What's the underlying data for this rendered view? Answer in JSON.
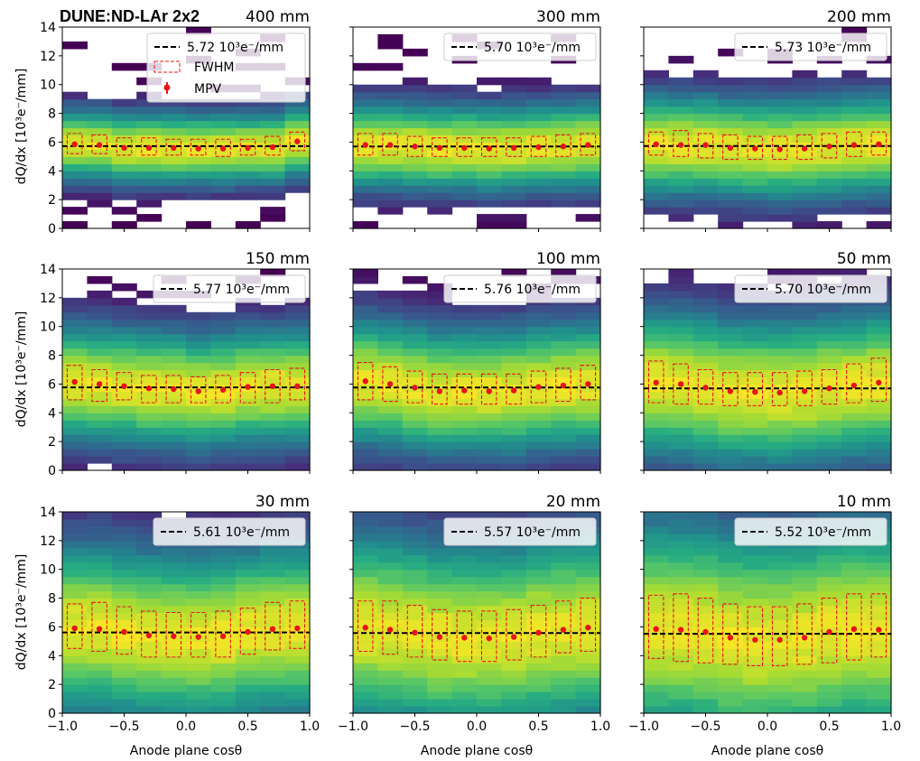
{
  "figure": {
    "suptitle": "DUNE:ND-LAr 2x2",
    "xlabel": "Anode plane cosθ",
    "ylabel": "dQ/dx [10³e⁻/mm]",
    "legend_line_template": "{v} 10³e⁻/mm",
    "legend_fwhm": "FWHM",
    "legend_mpv": "MPV",
    "colors": {
      "fit_line": "#000000",
      "fwhm_box": "#e8141a",
      "mpv_marker": "#e8141a",
      "colormap": "viridis"
    }
  },
  "chart_data": [
    {
      "type": "heatmap",
      "title": "400 mm",
      "fit_value": "5.72",
      "xlim": [
        -1.0,
        1.0
      ],
      "ylim": [
        0,
        14
      ],
      "xticks": [
        "−1.0",
        "−0.5",
        "0.0",
        "0.5",
        "1.0"
      ],
      "yticks": [
        "0",
        "2",
        "4",
        "6",
        "8",
        "10",
        "12",
        "14"
      ],
      "bins_x": [
        -0.9,
        -0.7,
        -0.5,
        -0.3,
        -0.1,
        0.1,
        0.3,
        0.5,
        0.7,
        0.9
      ],
      "mpv": [
        5.85,
        5.8,
        5.6,
        5.6,
        5.6,
        5.55,
        5.55,
        5.6,
        5.65,
        6.05
      ],
      "fwhm_low": [
        5.2,
        5.2,
        5.1,
        5.1,
        5.1,
        5.1,
        5.0,
        5.1,
        5.1,
        5.4
      ],
      "fwhm_high": [
        6.6,
        6.5,
        6.3,
        6.3,
        6.2,
        6.2,
        6.2,
        6.2,
        6.4,
        6.7
      ],
      "spread": 1.4,
      "occupancy": "sparse"
    },
    {
      "type": "heatmap",
      "title": "300 mm",
      "fit_value": "5.70",
      "xlim": [
        -1.0,
        1.0
      ],
      "ylim": [
        0,
        14
      ],
      "xticks": [
        "−1.0",
        "−0.5",
        "0.0",
        "0.5",
        "1.0"
      ],
      "yticks": [
        "0",
        "2",
        "4",
        "6",
        "8",
        "10",
        "12",
        "14"
      ],
      "bins_x": [
        -0.9,
        -0.7,
        -0.5,
        -0.3,
        -0.1,
        0.1,
        0.3,
        0.5,
        0.7,
        0.9
      ],
      "mpv": [
        5.8,
        5.8,
        5.7,
        5.6,
        5.6,
        5.55,
        5.6,
        5.65,
        5.7,
        5.8
      ],
      "fwhm_low": [
        5.1,
        5.1,
        5.0,
        5.0,
        5.0,
        5.0,
        5.0,
        5.0,
        5.0,
        5.1
      ],
      "fwhm_high": [
        6.6,
        6.6,
        6.4,
        6.3,
        6.3,
        6.3,
        6.3,
        6.4,
        6.5,
        6.6
      ],
      "spread": 1.7,
      "occupancy": "sparse"
    },
    {
      "type": "heatmap",
      "title": "200 mm",
      "fit_value": "5.73",
      "xlim": [
        -1.0,
        1.0
      ],
      "ylim": [
        0,
        14
      ],
      "xticks": [
        "−1.0",
        "−0.5",
        "0.0",
        "0.5",
        "1.0"
      ],
      "yticks": [
        "0",
        "2",
        "4",
        "6",
        "8",
        "10",
        "12",
        "14"
      ],
      "bins_x": [
        -0.9,
        -0.7,
        -0.5,
        -0.3,
        -0.1,
        0.1,
        0.3,
        0.5,
        0.7,
        0.9
      ],
      "mpv": [
        5.85,
        5.8,
        5.8,
        5.6,
        5.55,
        5.5,
        5.55,
        5.7,
        5.8,
        5.85
      ],
      "fwhm_low": [
        5.1,
        5.0,
        4.9,
        4.8,
        4.8,
        4.8,
        4.8,
        4.9,
        5.0,
        5.1
      ],
      "fwhm_high": [
        6.7,
        6.8,
        6.6,
        6.5,
        6.4,
        6.4,
        6.5,
        6.6,
        6.7,
        6.7
      ],
      "spread": 2.0,
      "occupancy": "sparse"
    },
    {
      "type": "heatmap",
      "title": "150 mm",
      "fit_value": "5.77",
      "xlim": [
        -1.0,
        1.0
      ],
      "ylim": [
        0,
        14
      ],
      "xticks": [
        "−1.0",
        "−0.5",
        "0.0",
        "0.5",
        "1.0"
      ],
      "yticks": [
        "0",
        "2",
        "4",
        "6",
        "8",
        "10",
        "12",
        "14"
      ],
      "bins_x": [
        -0.9,
        -0.7,
        -0.5,
        -0.3,
        -0.1,
        0.1,
        0.3,
        0.5,
        0.7,
        0.9
      ],
      "mpv": [
        6.15,
        6.0,
        5.85,
        5.7,
        5.65,
        5.5,
        5.6,
        5.8,
        5.85,
        5.85
      ],
      "fwhm_low": [
        4.9,
        4.8,
        4.9,
        4.7,
        4.7,
        4.7,
        4.7,
        4.7,
        4.7,
        4.9
      ],
      "fwhm_high": [
        7.3,
        7.0,
        6.8,
        6.6,
        6.6,
        6.5,
        6.6,
        6.8,
        7.0,
        7.1
      ],
      "spread": 2.3,
      "occupancy": "medium"
    },
    {
      "type": "heatmap",
      "title": "100 mm",
      "fit_value": "5.76",
      "xlim": [
        -1.0,
        1.0
      ],
      "ylim": [
        0,
        14
      ],
      "xticks": [
        "−1.0",
        "−0.5",
        "0.0",
        "0.5",
        "1.0"
      ],
      "yticks": [
        "0",
        "2",
        "4",
        "6",
        "8",
        "10",
        "12",
        "14"
      ],
      "bins_x": [
        -0.9,
        -0.7,
        -0.5,
        -0.3,
        -0.1,
        0.1,
        0.3,
        0.5,
        0.7,
        0.9
      ],
      "mpv": [
        6.2,
        6.0,
        5.75,
        5.5,
        5.55,
        5.5,
        5.55,
        5.8,
        5.9,
        6.0
      ],
      "fwhm_low": [
        4.9,
        4.8,
        4.7,
        4.6,
        4.6,
        4.6,
        4.6,
        4.7,
        4.8,
        4.9
      ],
      "fwhm_high": [
        7.5,
        7.2,
        6.9,
        6.7,
        6.7,
        6.7,
        6.7,
        6.9,
        7.1,
        7.3
      ],
      "spread": 2.5,
      "occupancy": "medium"
    },
    {
      "type": "heatmap",
      "title": "50 mm",
      "fit_value": "5.70",
      "xlim": [
        -1.0,
        1.0
      ],
      "ylim": [
        0,
        14
      ],
      "xticks": [
        "−1.0",
        "−0.5",
        "0.0",
        "0.5",
        "1.0"
      ],
      "yticks": [
        "0",
        "2",
        "4",
        "6",
        "8",
        "10",
        "12",
        "14"
      ],
      "bins_x": [
        -0.9,
        -0.7,
        -0.5,
        -0.3,
        -0.1,
        0.1,
        0.3,
        0.5,
        0.7,
        0.9
      ],
      "mpv": [
        6.1,
        6.0,
        5.75,
        5.5,
        5.45,
        5.4,
        5.5,
        5.7,
        5.9,
        6.1
      ],
      "fwhm_low": [
        4.7,
        4.6,
        4.6,
        4.5,
        4.5,
        4.5,
        4.5,
        4.6,
        4.7,
        4.8
      ],
      "fwhm_high": [
        7.6,
        7.4,
        7.0,
        6.8,
        6.8,
        6.8,
        6.9,
        7.0,
        7.4,
        7.8
      ],
      "spread": 2.9,
      "occupancy": "dense"
    },
    {
      "type": "heatmap",
      "title": "30 mm",
      "fit_value": "5.61",
      "xlim": [
        -1.0,
        1.0
      ],
      "ylim": [
        0,
        14
      ],
      "xticks": [
        "−1.0",
        "−0.5",
        "0.0",
        "0.5",
        "1.0"
      ],
      "yticks": [
        "0",
        "2",
        "4",
        "6",
        "8",
        "10",
        "12",
        "14"
      ],
      "bins_x": [
        -0.9,
        -0.7,
        -0.5,
        -0.3,
        -0.1,
        0.1,
        0.3,
        0.5,
        0.7,
        0.9
      ],
      "mpv": [
        5.9,
        5.85,
        5.65,
        5.4,
        5.35,
        5.3,
        5.35,
        5.65,
        5.85,
        5.9
      ],
      "fwhm_low": [
        4.5,
        4.3,
        4.1,
        3.9,
        3.9,
        3.9,
        3.9,
        4.1,
        4.4,
        4.5
      ],
      "fwhm_high": [
        7.6,
        7.7,
        7.4,
        7.1,
        7.0,
        7.0,
        7.1,
        7.3,
        7.7,
        7.8
      ],
      "spread": 3.4,
      "occupancy": "dense"
    },
    {
      "type": "heatmap",
      "title": "20 mm",
      "fit_value": "5.57",
      "xlim": [
        -1.0,
        1.0
      ],
      "ylim": [
        0,
        14
      ],
      "xticks": [
        "−1.0",
        "−0.5",
        "0.0",
        "0.5",
        "1.0"
      ],
      "yticks": [
        "0",
        "2",
        "4",
        "6",
        "8",
        "10",
        "12",
        "14"
      ],
      "bins_x": [
        -0.9,
        -0.7,
        -0.5,
        -0.3,
        -0.1,
        0.1,
        0.3,
        0.5,
        0.7,
        0.9
      ],
      "mpv": [
        5.95,
        5.8,
        5.6,
        5.3,
        5.25,
        5.2,
        5.3,
        5.6,
        5.8,
        5.95
      ],
      "fwhm_low": [
        4.3,
        4.1,
        3.9,
        3.7,
        3.6,
        3.6,
        3.7,
        3.9,
        4.2,
        4.3
      ],
      "fwhm_high": [
        7.8,
        7.8,
        7.5,
        7.2,
        7.1,
        7.1,
        7.2,
        7.5,
        7.8,
        8.0
      ],
      "spread": 3.8,
      "occupancy": "dense"
    },
    {
      "type": "heatmap",
      "title": "10 mm",
      "fit_value": "5.52",
      "xlim": [
        -1.0,
        1.0
      ],
      "ylim": [
        0,
        14
      ],
      "xticks": [
        "−1.0",
        "−0.5",
        "0.0",
        "0.5",
        "1.0"
      ],
      "yticks": [
        "0",
        "2",
        "4",
        "6",
        "8",
        "10",
        "12",
        "14"
      ],
      "bins_x": [
        -0.9,
        -0.7,
        -0.5,
        -0.3,
        -0.1,
        0.1,
        0.3,
        0.5,
        0.7,
        0.9
      ],
      "mpv": [
        5.85,
        5.8,
        5.65,
        5.25,
        5.1,
        5.1,
        5.25,
        5.65,
        5.85,
        5.8
      ],
      "fwhm_low": [
        3.8,
        3.6,
        3.5,
        3.4,
        3.3,
        3.3,
        3.4,
        3.5,
        3.7,
        3.9
      ],
      "fwhm_high": [
        8.2,
        8.3,
        8.0,
        7.6,
        7.4,
        7.4,
        7.6,
        8.0,
        8.3,
        8.3
      ],
      "spread": 4.4,
      "occupancy": "full"
    }
  ]
}
